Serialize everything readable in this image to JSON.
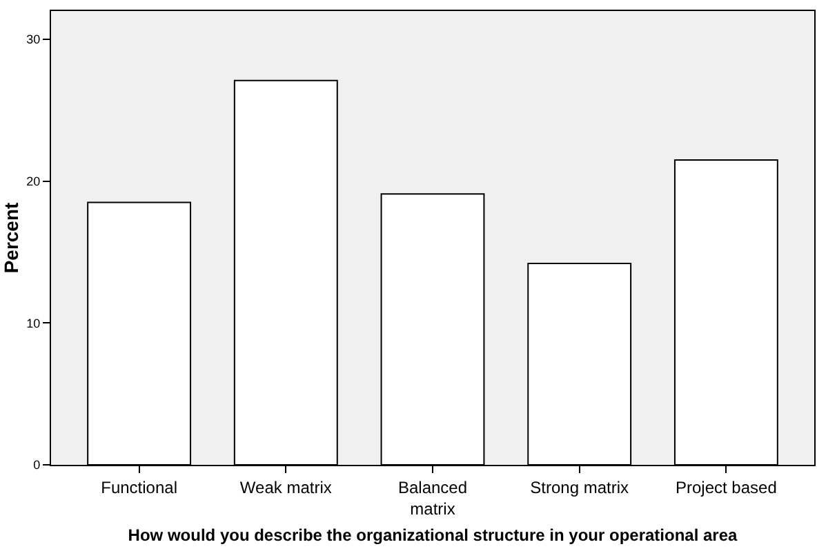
{
  "chart_data": {
    "type": "bar",
    "categories": [
      "Functional",
      "Weak matrix",
      "Balanced matrix",
      "Strong matrix",
      "Project based"
    ],
    "values": [
      18.5,
      27.1,
      19.1,
      14.2,
      21.5
    ],
    "color": "#ffffff",
    "xlabel": "How would you describe the organizational structure in your operational area",
    "ylabel": "Percent",
    "ylim": [
      0,
      32
    ],
    "yticks": [
      0,
      10,
      20,
      30
    ],
    "grid": false
  }
}
